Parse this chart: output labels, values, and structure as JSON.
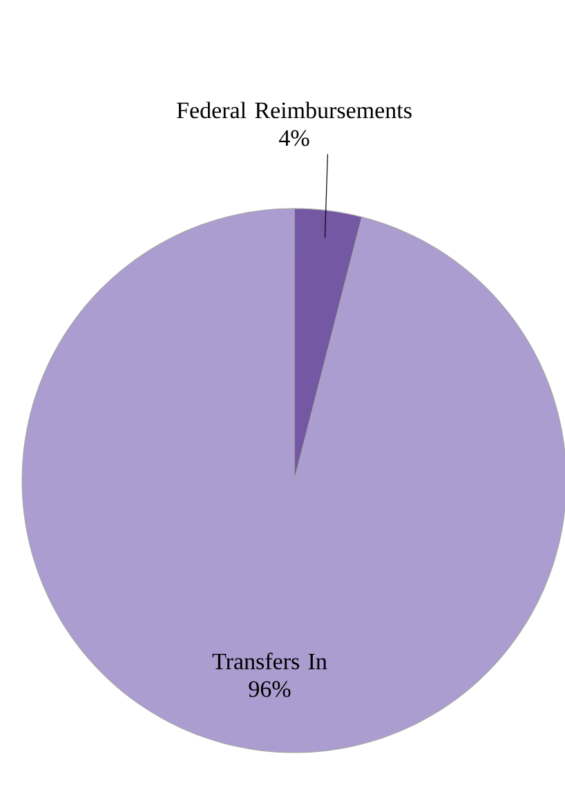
{
  "chart_data": {
    "type": "pie",
    "categories": [
      "Federal Reimbursements",
      "Transfers In"
    ],
    "values": [
      4,
      96
    ],
    "value_labels": [
      "4%",
      "96%"
    ],
    "colors": [
      "#7458a4",
      "#ab9dd0"
    ]
  }
}
